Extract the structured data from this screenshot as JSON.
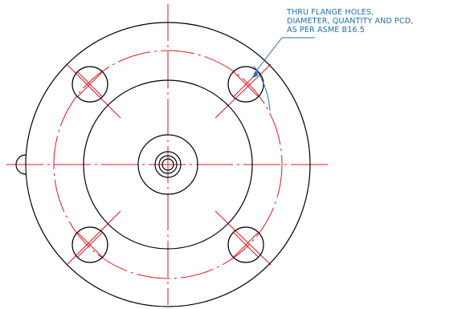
{
  "callout": {
    "lines": [
      "THRU FLANGE HOLES,",
      "DIAMETER, QUANTITY AND PCD,",
      "AS PER ASME B16.5"
    ]
  },
  "colors": {
    "outline": "#000000",
    "centerline": "#e8141b",
    "callout": "#1f6fb2"
  }
}
